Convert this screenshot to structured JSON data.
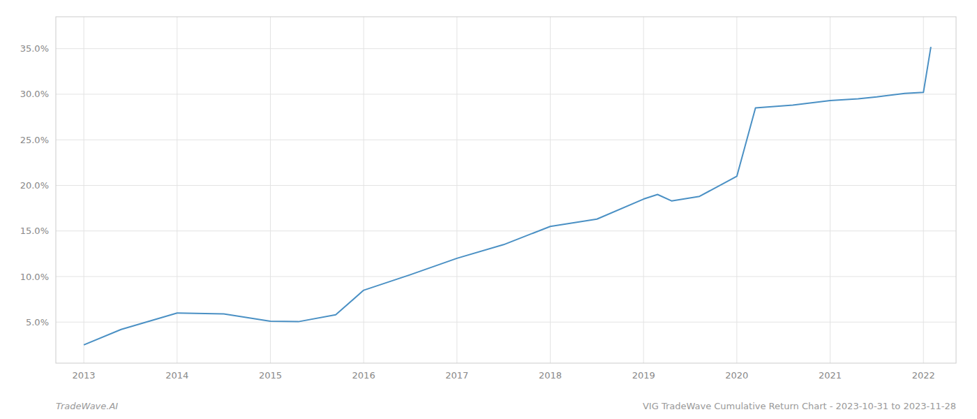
{
  "chart_data": {
    "type": "line",
    "x": [
      2013.0,
      2013.4,
      2014.0,
      2014.5,
      2015.0,
      2015.3,
      2015.7,
      2016.0,
      2016.5,
      2017.0,
      2017.5,
      2018.0,
      2018.5,
      2019.0,
      2019.15,
      2019.3,
      2019.6,
      2020.0,
      2020.2,
      2020.6,
      2021.0,
      2021.3,
      2021.5,
      2021.8,
      2022.0,
      2022.08
    ],
    "values": [
      2.5,
      4.2,
      6.0,
      5.9,
      5.1,
      5.05,
      5.8,
      8.5,
      10.2,
      12.0,
      13.5,
      15.5,
      16.3,
      18.5,
      19.0,
      18.3,
      18.8,
      21.0,
      28.5,
      28.8,
      29.3,
      29.5,
      29.7,
      30.1,
      30.2,
      35.2
    ],
    "color": "#4a90c4",
    "xlim": [
      2012.7,
      2022.35
    ],
    "xticks": [
      2013,
      2014,
      2015,
      2016,
      2017,
      2018,
      2019,
      2020,
      2021,
      2022
    ],
    "ylim": [
      0.5,
      38.5
    ],
    "yticks": [
      {
        "value": 5.0,
        "label": "5.0%"
      },
      {
        "value": 10.0,
        "label": "10.0%"
      },
      {
        "value": 15.0,
        "label": "15.0%"
      },
      {
        "value": 20.0,
        "label": "20.0%"
      },
      {
        "value": 25.0,
        "label": "25.0%"
      },
      {
        "value": 30.0,
        "label": "30.0%"
      },
      {
        "value": 35.0,
        "label": "35.0%"
      }
    ],
    "grid": true,
    "annotations": [
      "TradeWave.AI",
      "VIG TradeWave Cumulative Return Chart - 2023-10-31 to 2023-11-28"
    ]
  }
}
